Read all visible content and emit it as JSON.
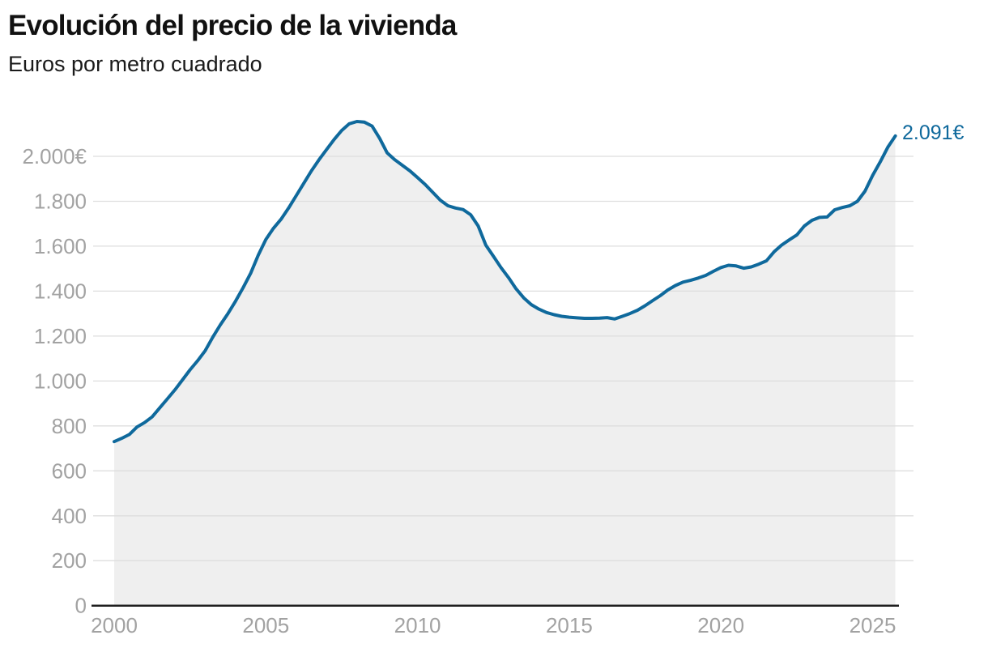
{
  "header": {
    "title": "Evolución del precio de la vivienda",
    "subtitle": "Euros por metro cuadrado"
  },
  "chart_data": {
    "type": "area",
    "title": "Evolución del precio de la vivienda",
    "subtitle": "Euros por metro cuadrado",
    "unit": "€/m²",
    "grid": true,
    "legend_position": "none",
    "xlim": [
      2000,
      2025.75
    ],
    "ylim": [
      0,
      2160
    ],
    "xticks": [
      2000,
      2005,
      2010,
      2015,
      2020,
      2025
    ],
    "xtick_labels": [
      "2000",
      "2005",
      "2010",
      "2015",
      "2020",
      "2025"
    ],
    "yticks": [
      0,
      200,
      400,
      600,
      800,
      1000,
      1200,
      1400,
      1600,
      1800,
      2000
    ],
    "ytick_labels": [
      "0",
      "200",
      "400",
      "600",
      "800",
      "1.000",
      "1.200",
      "1.400",
      "1.600",
      "1.800",
      "2.000€"
    ],
    "end_label": "2.091€",
    "latest_point": {
      "x": 2025.75,
      "value": 2091
    },
    "colors": {
      "line": "#0f699c",
      "label": "#0f699c",
      "area": "#efefef",
      "grid": "#dedede",
      "axis": "#1f1f1f",
      "tick_text": "#a2a2a2"
    },
    "x": [
      2000.0,
      2000.25,
      2000.5,
      2000.75,
      2001.0,
      2001.25,
      2001.5,
      2001.75,
      2002.0,
      2002.25,
      2002.5,
      2002.75,
      2003.0,
      2003.25,
      2003.5,
      2003.75,
      2004.0,
      2004.25,
      2004.5,
      2004.75,
      2005.0,
      2005.25,
      2005.5,
      2005.75,
      2006.0,
      2006.25,
      2006.5,
      2006.75,
      2007.0,
      2007.25,
      2007.5,
      2007.75,
      2008.0,
      2008.25,
      2008.5,
      2008.75,
      2009.0,
      2009.25,
      2009.5,
      2009.75,
      2010.0,
      2010.25,
      2010.5,
      2010.75,
      2011.0,
      2011.25,
      2011.5,
      2011.75,
      2012.0,
      2012.25,
      2012.5,
      2012.75,
      2013.0,
      2013.25,
      2013.5,
      2013.75,
      2014.0,
      2014.25,
      2014.5,
      2014.75,
      2015.0,
      2015.25,
      2015.5,
      2015.75,
      2016.0,
      2016.25,
      2016.5,
      2016.75,
      2017.0,
      2017.25,
      2017.5,
      2017.75,
      2018.0,
      2018.25,
      2018.5,
      2018.75,
      2019.0,
      2019.25,
      2019.5,
      2019.75,
      2020.0,
      2020.25,
      2020.5,
      2020.75,
      2021.0,
      2021.25,
      2021.5,
      2021.75,
      2022.0,
      2022.25,
      2022.5,
      2022.75,
      2023.0,
      2023.25,
      2023.5,
      2023.75,
      2024.0,
      2024.25,
      2024.5,
      2024.75,
      2025.0,
      2025.25,
      2025.5,
      2025.75
    ],
    "y": [
      730,
      745,
      762,
      795,
      815,
      840,
      880,
      920,
      960,
      1005,
      1050,
      1090,
      1135,
      1195,
      1250,
      1300,
      1355,
      1415,
      1480,
      1560,
      1630,
      1680,
      1720,
      1770,
      1825,
      1880,
      1935,
      1985,
      2030,
      2075,
      2115,
      2145,
      2155,
      2152,
      2135,
      2080,
      2015,
      1985,
      1960,
      1935,
      1905,
      1875,
      1840,
      1805,
      1780,
      1770,
      1763,
      1740,
      1690,
      1605,
      1555,
      1505,
      1460,
      1410,
      1370,
      1340,
      1320,
      1305,
      1295,
      1288,
      1284,
      1281,
      1279,
      1279,
      1280,
      1282,
      1276,
      1288,
      1300,
      1315,
      1335,
      1358,
      1380,
      1405,
      1425,
      1440,
      1448,
      1458,
      1470,
      1488,
      1505,
      1515,
      1512,
      1502,
      1508,
      1520,
      1535,
      1575,
      1605,
      1628,
      1650,
      1690,
      1715,
      1728,
      1730,
      1762,
      1772,
      1780,
      1800,
      1845,
      1915,
      1975,
      2040,
      2091
    ]
  }
}
